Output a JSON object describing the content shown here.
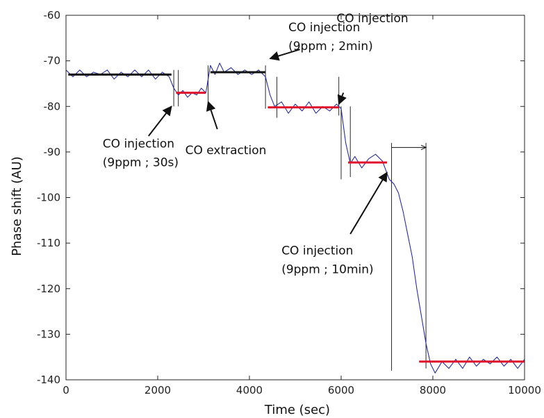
{
  "chart_data": {
    "type": "line",
    "title": "",
    "xlabel": "Time (sec)",
    "ylabel": "Phase shift (AU)",
    "xlim": [
      0,
      10000
    ],
    "ylim": [
      -140,
      -60
    ],
    "xticks": [
      0,
      2000,
      4000,
      6000,
      8000,
      10000
    ],
    "yticks": [
      -60,
      -70,
      -80,
      -90,
      -100,
      -110,
      -120,
      -130,
      -140
    ],
    "grid": false,
    "colors": {
      "signal": "#2a2f8a",
      "baseline_black": "#111111",
      "baseline_red": "#e0112b",
      "annotation": "#111111"
    },
    "series": [
      {
        "x": [
          0,
          150,
          300,
          450,
          600,
          750,
          900,
          1050,
          1200,
          1350,
          1500,
          1650,
          1800,
          1950,
          2100,
          2250,
          2350,
          2450,
          2550,
          2650,
          2750,
          2850,
          2950,
          3050,
          3150,
          3250,
          3350,
          3450,
          3600,
          3750,
          3900,
          4050,
          4200,
          4350,
          4450,
          4550,
          4700,
          4850,
          5000,
          5150,
          5300,
          5450,
          5600,
          5750,
          5900,
          6000,
          6100,
          6200,
          6300,
          6450,
          6600,
          6750,
          6900,
          7050,
          7150,
          7250,
          7350,
          7450,
          7550,
          7650,
          7750,
          7850,
          7950,
          8050,
          8200,
          8350,
          8500,
          8650,
          8800,
          8950,
          9100,
          9250,
          9400,
          9550,
          9700,
          9850,
          10000
        ],
        "y": [
          -72,
          -73.5,
          -72,
          -73.5,
          -72.5,
          -73,
          -72,
          -74,
          -72.5,
          -73.5,
          -72,
          -73.5,
          -72,
          -74,
          -72.5,
          -73.5,
          -76,
          -77.5,
          -76.5,
          -78,
          -77,
          -77.5,
          -76,
          -77,
          -71,
          -73,
          -70.5,
          -72.5,
          -71.5,
          -73,
          -72,
          -73,
          -72,
          -73.5,
          -77.5,
          -80,
          -79,
          -81.5,
          -79.5,
          -81,
          -79,
          -81.5,
          -80,
          -81,
          -79.5,
          -80.5,
          -88,
          -92.5,
          -91,
          -93.5,
          -91.5,
          -90.5,
          -92,
          -96,
          -97,
          -99,
          -103,
          -108,
          -113,
          -120,
          -126,
          -132,
          -136.5,
          -138.5,
          -136,
          -137.5,
          -135.5,
          -137.5,
          -135,
          -137,
          -135.5,
          -136.5,
          -135,
          -137,
          -135.5,
          -137.5,
          -135.5
        ]
      }
    ],
    "baselines": [
      {
        "x": [
          50,
          2300
        ],
        "y": -73,
        "color": "black"
      },
      {
        "x": [
          2400,
          3050
        ],
        "y": -77,
        "color": "red"
      },
      {
        "x": [
          3150,
          4350
        ],
        "y": -72.5,
        "color": "black"
      },
      {
        "x": [
          4400,
          5950
        ],
        "y": -80.2,
        "color": "red"
      },
      {
        "x": [
          6150,
          7000
        ],
        "y": -92.3,
        "color": "red"
      },
      {
        "x": [
          7700,
          10000
        ],
        "y": -136,
        "color": "red"
      }
    ],
    "vlines": [
      {
        "x": 2350,
        "y": [
          -72,
          -80
        ]
      },
      {
        "x": 2450,
        "y": [
          -72,
          -80
        ]
      },
      {
        "x": 3100,
        "y": [
          -71,
          -79
        ]
      },
      {
        "x": 4350,
        "y": [
          -71,
          -80.5
        ]
      },
      {
        "x": 4600,
        "y": [
          -73.5,
          -82.5
        ]
      },
      {
        "x": 5950,
        "y": [
          -73.5,
          -82
        ]
      },
      {
        "x": 6000,
        "y": [
          -80,
          -96
        ]
      },
      {
        "x": 6200,
        "y": [
          -80,
          -95.5
        ]
      },
      {
        "x": 7100,
        "y": [
          -88,
          -138
        ]
      },
      {
        "x": 7850,
        "y": [
          -88,
          -137.5
        ]
      }
    ],
    "annotations": [
      {
        "lines": [
          "CO injection",
          "(9ppm ; 30s)"
        ],
        "x": 800,
        "y": -89,
        "arrow_from": [
          1800,
          -86.5
        ],
        "arrow_to": [
          2300,
          -80
        ]
      },
      {
        "lines": [
          "CO extraction"
        ],
        "x": 2600,
        "y": -90.5,
        "arrow_from": [
          3300,
          -85
        ],
        "arrow_to": [
          3100,
          -79
        ]
      },
      {
        "lines": [
          "CO injection",
          "(9ppm ; 2min)"
        ],
        "x": 4850,
        "y": -63.5,
        "arrow_from": [
          5100,
          -67.5
        ],
        "arrow_to": [
          4450,
          -69.5
        ]
      },
      {
        "lines": [
          "CO injection"
        ],
        "x": 5900,
        "y": -61.5
      },
      {
        "lines": [],
        "x": 0,
        "y": 0,
        "arrow_from": [
          6050,
          -77
        ],
        "arrow_to": [
          5950,
          -79.5
        ]
      },
      {
        "lines": [
          "CO injection",
          "(9ppm ; 10min)"
        ],
        "x": 4700,
        "y": -112.5,
        "arrow_from": [
          6200,
          -108
        ],
        "arrow_to": [
          7000,
          -94.5
        ]
      }
    ],
    "span_arrow": {
      "x": [
        7100,
        7850
      ],
      "y": -89
    }
  }
}
